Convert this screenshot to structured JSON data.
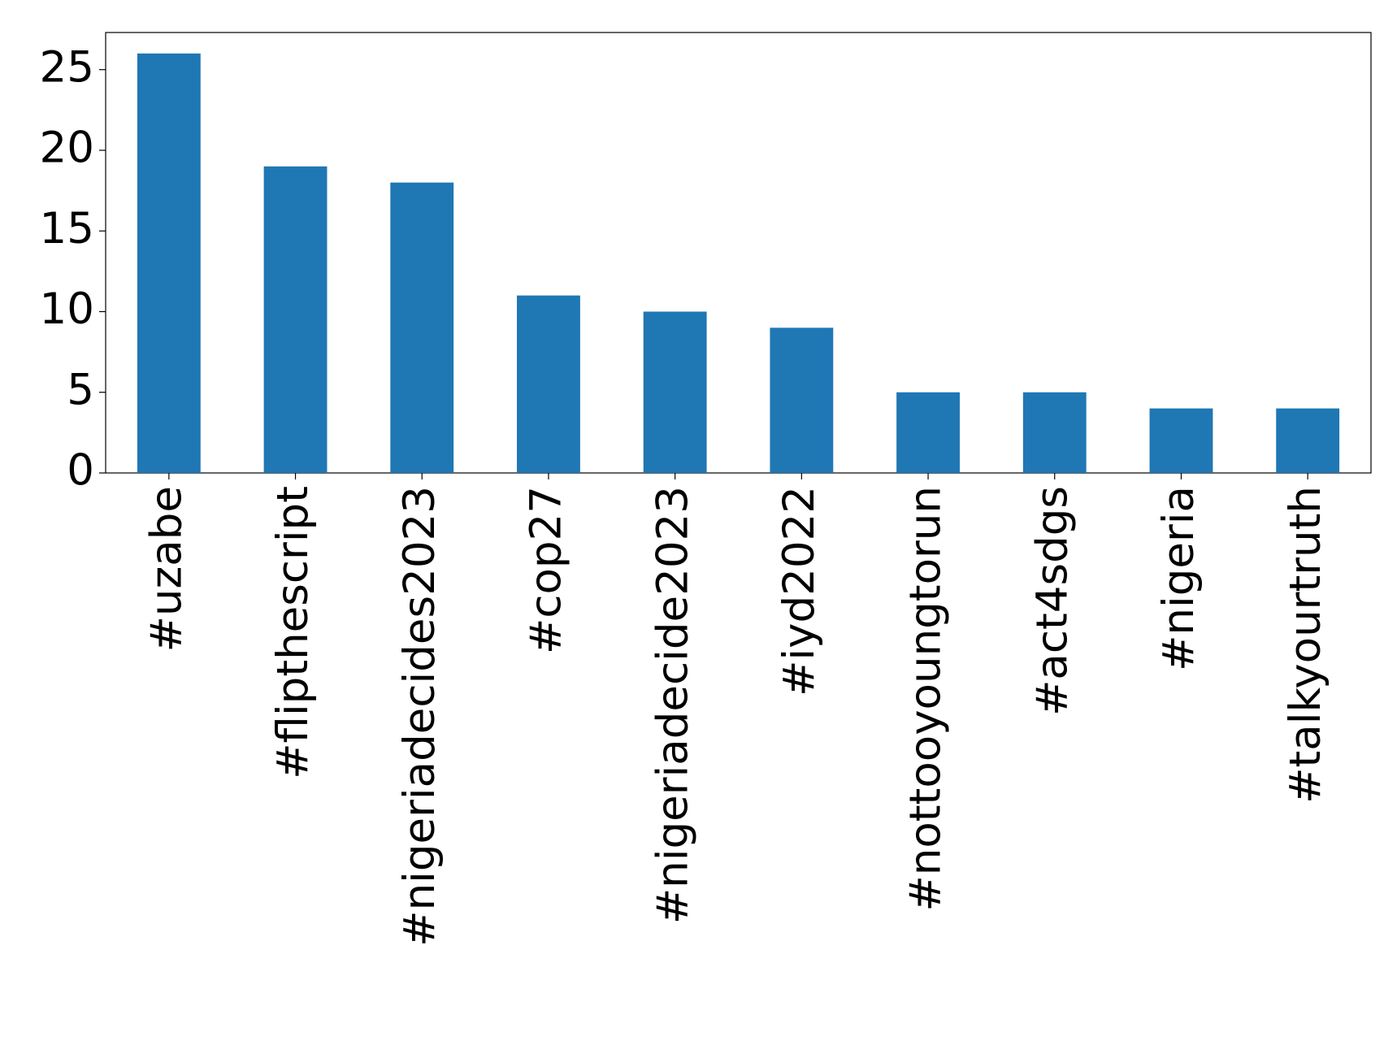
{
  "chart_data": {
    "type": "bar",
    "categories": [
      "#uzabe",
      "#flipthescript",
      "#nigeriadecides2023",
      "#cop27",
      "#nigeriadecide2023",
      "#iyd2022",
      "#nottooyoungtorun",
      "#act4sdgs",
      "#nigeria",
      "#talkyourtruth"
    ],
    "values": [
      26,
      19,
      18,
      11,
      10,
      9,
      5,
      5,
      4,
      4
    ],
    "color": "#1f77b4",
    "ylim": [
      0,
      27.3
    ],
    "yticks": [
      0,
      5,
      10,
      15,
      20,
      25
    ],
    "grid": false
  }
}
